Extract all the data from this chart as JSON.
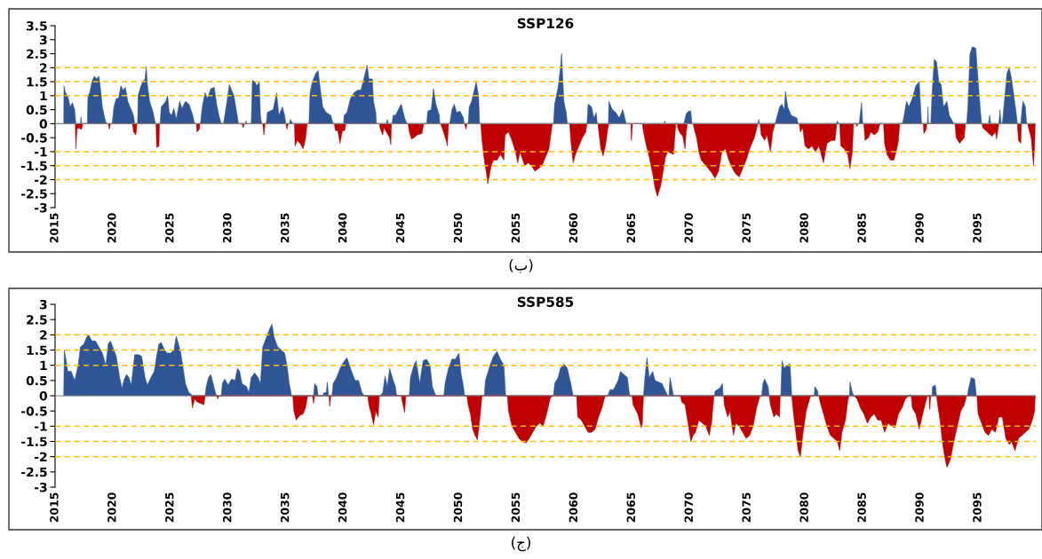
{
  "chart_data": [
    {
      "type": "area",
      "title": "SSP126",
      "xlim": [
        2015,
        2100
      ],
      "xticks": [
        2015,
        2020,
        2025,
        2030,
        2035,
        2040,
        2045,
        2050,
        2055,
        2060,
        2065,
        2070,
        2075,
        2080,
        2085,
        2090,
        2095
      ],
      "ylim": [
        -3,
        3.5
      ],
      "yticks": [
        -3,
        -2.5,
        -2,
        -1.5,
        -1,
        -0.5,
        0,
        0.5,
        1,
        1.5,
        2,
        2.5,
        3,
        3.5
      ],
      "grid": false,
      "legend": false,
      "ref_lines": [
        {
          "axis": "y",
          "value": 2,
          "color": "#ffc000",
          "line_style": "dashed"
        },
        {
          "axis": "y",
          "value": 1.5,
          "color": "#ffc000",
          "line_style": "dashed"
        },
        {
          "axis": "y",
          "value": 1,
          "color": "#ffc000",
          "line_style": "dashed"
        },
        {
          "axis": "y",
          "value": -1,
          "color": "#ffc000",
          "line_style": "dashed"
        },
        {
          "axis": "y",
          "value": -1.5,
          "color": "#ffc000",
          "line_style": "dashed"
        },
        {
          "axis": "y",
          "value": -2,
          "color": "#ffc000",
          "line_style": "dashed"
        }
      ],
      "annotations": [
        "(ب)"
      ],
      "series": [
        {
          "color": "#2f5597",
          "x": [
            2015.75,
            2015.77,
            2015.9,
            2016.1,
            2016.3,
            2016.5,
            2016.7,
            2016.8,
            2017.2,
            2017.25,
            2017.3,
            2017.8,
            2017.85,
            2018.0,
            2018.2,
            2018.4,
            2018.6,
            2018.8,
            2018.95,
            2019.1,
            2019.3,
            2019.45,
            2019.95,
            2020.1,
            2020.3,
            2020.5,
            2020.7,
            2020.9,
            2021.1,
            2021.3,
            2021.6,
            2021.8,
            2021.9,
            2022.15,
            2022.2,
            2022.4,
            2022.6,
            2022.8,
            2022.9,
            2023.0,
            2023.2,
            2023.5,
            2023.7,
            2024.1,
            2024.2,
            2024.4,
            2024.6,
            2024.75,
            2024.9,
            2025.1,
            2025.3,
            2025.5,
            2025.8,
            2026.0,
            2026.3,
            2026.6,
            2026.9,
            2027.1,
            2027.6,
            2027.7,
            2027.8,
            2028.0,
            2028.2,
            2028.5,
            2028.8,
            2029.0,
            2029.2,
            2029.4,
            2029.6,
            2029.9,
            2030.1,
            2030.3,
            2030.5,
            2030.7,
            2030.9,
            2031.5,
            2031.55,
            2031.6,
            2032.0,
            2032.1,
            2032.3,
            2032.5,
            2032.7,
            2032.8,
            2032.9,
            2033.3,
            2033.4,
            2033.6,
            2033.9,
            2034.2,
            2034.4,
            2034.7,
            2034.9,
            2035.0,
            2035.3,
            2035.4,
            2035.6,
            2037.0,
            2037.1,
            2037.3,
            2037.6,
            2037.8,
            2038.0,
            2038.2,
            2038.5,
            2038.9,
            2039.1,
            2040.0,
            2040.05,
            2040.3,
            2040.6,
            2040.9,
            2041.2,
            2041.5,
            2041.7,
            2042.05,
            2042.2,
            2042.5,
            2042.6,
            2042.8,
            2042.85,
            2043.7,
            2043.8,
            2043.9,
            2044.2,
            2044.3,
            2044.5,
            2045.0,
            2045.3,
            2045.5,
            2047.2,
            2047.3,
            2047.6,
            2047.8,
            2048.0,
            2048.3,
            2048.35,
            2049.2,
            2049.4,
            2049.6,
            2049.8,
            2050.1,
            2050.4,
            2050.45,
            2050.8,
            2050.9,
            2051.1,
            2051.5,
            2051.7,
            2051.8,
            2058.2,
            2058.3,
            2058.6,
            2058.8,
            2058.9,
            2059.1,
            2059.3,
            2059.4,
            2061.1,
            2061.2,
            2061.5,
            2061.7,
            2061.9,
            2062.0,
            2062.95,
            2063.0,
            2063.3,
            2063.6,
            2063.9,
            2064.2,
            2064.5,
            2067.8,
            2067.85,
            2067.9,
            2069.5,
            2069.7,
            2069.9,
            2070.1,
            2070.2,
            2075.9,
            2076.0,
            2076.05,
            2077.4,
            2077.5,
            2077.8,
            2078.0,
            2078.2,
            2078.3,
            2078.5,
            2078.8,
            2079.3,
            2079.4,
            2082.7,
            2082.8,
            2082.9,
            2084.7,
            2084.8,
            2084.9,
            2085.0,
            2088.4,
            2088.5,
            2088.8,
            2089.0,
            2089.3,
            2089.5,
            2089.6,
            2089.9,
            2090.1,
            2090.6,
            2090.65,
            2090.7,
            2090.9,
            2091.0,
            2091.2,
            2091.4,
            2091.6,
            2091.8,
            2092.0,
            2092.3,
            2092.5,
            2092.9,
            2094.0,
            2094.1,
            2094.3,
            2094.5,
            2094.8,
            2095.1,
            2095.3,
            2095.9,
            2096.0,
            2096.1,
            2096.8,
            2096.9,
            2097.0,
            2097.1,
            2097.3,
            2097.5,
            2097.7,
            2097.9,
            2098.1,
            2098.3,
            2098.4,
            2098.7,
            2098.8,
            2098.9,
            2099.1,
            2099.2
          ],
          "values": [
            0,
            1.35,
            1.1,
            1.0,
            0.6,
            0.75,
            0.5,
            0,
            0,
            0.25,
            0,
            0,
            1.0,
            1.1,
            1.5,
            1.7,
            1.6,
            1.7,
            1.2,
            0.6,
            0.2,
            0,
            0,
            0.6,
            0.9,
            0.9,
            1.35,
            1.2,
            1.3,
            0.8,
            0.5,
            0.3,
            0,
            0,
            1.0,
            1.3,
            1.5,
            1.6,
            2.05,
            1.4,
            0.8,
            0.4,
            0,
            0,
            0.6,
            0.7,
            0.8,
            1.0,
            0.4,
            0.3,
            0.55,
            0.15,
            0.8,
            0.55,
            0.8,
            0.7,
            0.35,
            0,
            0,
            0.4,
            0.7,
            1.1,
            0.9,
            1.25,
            1.3,
            0.7,
            0.3,
            0,
            0,
            0.8,
            1.4,
            1.2,
            1.0,
            0.5,
            0,
            0,
            0.1,
            0,
            0,
            1.55,
            1.5,
            1.35,
            1.5,
            0.3,
            0,
            0,
            0.4,
            0.45,
            0.5,
            1.1,
            0.3,
            0.6,
            0.3,
            0,
            0,
            0.15,
            0,
            0,
            1.1,
            1.5,
            1.8,
            1.9,
            1.2,
            0.6,
            0.4,
            0.3,
            0,
            0,
            0.3,
            0.4,
            0.9,
            1.1,
            1.2,
            1.2,
            1.5,
            2.1,
            1.6,
            1.6,
            0.8,
            0.4,
            0,
            0,
            0.15,
            0,
            0,
            0.3,
            0.3,
            0.7,
            0.2,
            0,
            0,
            0.45,
            0.5,
            1.25,
            0.7,
            0.3,
            0,
            0,
            0.5,
            0.7,
            0.4,
            0.45,
            0.2,
            0,
            0,
            0.6,
            0.8,
            1.5,
            1.0,
            0,
            0,
            0.7,
            1.3,
            2.0,
            2.5,
            0.8,
            0.4,
            0,
            0,
            0.7,
            0.6,
            0.2,
            0.4,
            0,
            0,
            0.8,
            0.5,
            0.4,
            0.2,
            0.5,
            0,
            0,
            0.1,
            0,
            0,
            0.35,
            0.45,
            0.45,
            0,
            0,
            0.15,
            0,
            0,
            0.15,
            0.6,
            0.7,
            0.5,
            1.15,
            0.6,
            0.3,
            0.2,
            0,
            0,
            0.1,
            0,
            0,
            0.4,
            0.75,
            0,
            0,
            0.1,
            0.8,
            0.6,
            0.9,
            1.2,
            1.35,
            1.5,
            0,
            0,
            0.6,
            0,
            0,
            1.0,
            2.3,
            2.2,
            1.5,
            1.4,
            0.6,
            0.8,
            0.3,
            0,
            0,
            0.5,
            2.5,
            2.75,
            2.7,
            1.0,
            0,
            0,
            0.3,
            0,
            0,
            0.5,
            0,
            0,
            0.9,
            1.8,
            2.0,
            1.6,
            1.0,
            0.4,
            0,
            0,
            0.5,
            0.8,
            0.6,
            0
          ]
        },
        {
          "color": "#c00000",
          "x": [
            2016.75,
            2016.8,
            2016.9,
            2017.0,
            2017.3,
            2017.4,
            2019.6,
            2019.7,
            2019.8,
            2021.7,
            2021.8,
            2022.0,
            2022.1,
            2023.75,
            2023.8,
            2024.0,
            2024.05,
            2027.25,
            2027.3,
            2027.5,
            2027.55,
            2031.2,
            2031.3,
            2031.4,
            2033.0,
            2033.1,
            2033.2,
            2035.0,
            2035.1,
            2035.2,
            2035.75,
            2035.8,
            2036.0,
            2036.3,
            2036.5,
            2036.7,
            2036.85,
            2039.2,
            2039.3,
            2039.5,
            2039.7,
            2039.9,
            2040.1,
            2040.2,
            2043.1,
            2043.2,
            2043.4,
            2043.5,
            2044.0,
            2044.1,
            2044.15,
            2045.6,
            2045.7,
            2045.9,
            2046.1,
            2046.4,
            2046.8,
            2046.95,
            2048.4,
            2048.5,
            2048.9,
            2049.0,
            2049.1,
            2050.5,
            2050.6,
            2050.7,
            2051.9,
            2052.0,
            2052.2,
            2052.4,
            2052.5,
            2052.8,
            2053.0,
            2053.3,
            2053.6,
            2053.9,
            2054.0,
            2054.3,
            2054.6,
            2054.9,
            2055.1,
            2055.3,
            2055.7,
            2056.0,
            2056.3,
            2056.6,
            2056.9,
            2057.2,
            2057.5,
            2057.8,
            2058.1,
            2059.6,
            2059.7,
            2059.9,
            2060.1,
            2060.4,
            2060.7,
            2061.0,
            2061.1,
            2062.05,
            2062.1,
            2062.3,
            2062.5,
            2062.7,
            2062.9,
            2063.0,
            2064.9,
            2064.95,
            2065.05,
            2065.9,
            2066.0,
            2066.2,
            2066.5,
            2066.8,
            2067.0,
            2067.2,
            2067.5,
            2067.7,
            2067.9,
            2068.1,
            2068.6,
            2068.8,
            2068.9,
            2069.0,
            2069.2,
            2069.4,
            2069.6,
            2069.7,
            2069.8,
            2070.3,
            2070.4,
            2070.6,
            2070.8,
            2071.0,
            2071.3,
            2071.6,
            2071.9,
            2072.2,
            2072.5,
            2072.8,
            2073.1,
            2073.4,
            2073.7,
            2074.0,
            2074.3,
            2074.6,
            2074.9,
            2075.2,
            2075.6,
            2075.8,
            2075.9,
            2076.1,
            2076.2,
            2076.5,
            2076.7,
            2077.0,
            2077.2,
            2077.4,
            2079.5,
            2079.6,
            2079.8,
            2080.0,
            2080.3,
            2080.6,
            2080.9,
            2081.2,
            2081.6,
            2081.9,
            2082.3,
            2082.6,
            2082.75,
            2083.0,
            2083.1,
            2083.4,
            2083.7,
            2083.9,
            2084.1,
            2084.2,
            2084.4,
            2084.5,
            2084.6,
            2085.1,
            2085.2,
            2085.5,
            2085.7,
            2086.0,
            2086.3,
            2086.5,
            2086.8,
            2086.9,
            2087.1,
            2087.4,
            2087.7,
            2087.9,
            2088.1,
            2088.2,
            2090.25,
            2090.3,
            2090.5,
            2090.55,
            2093.0,
            2093.1,
            2093.4,
            2093.8,
            2093.9,
            2095.35,
            2095.4,
            2095.8,
            2096.2,
            2096.5,
            2096.6,
            2096.8,
            2098.4,
            2098.5,
            2098.7,
            2098.75,
            2099.3,
            2099.4,
            2099.6,
            2099.8,
            2099.9,
            2099.95
          ],
          "values": [
            0,
            -0.9,
            -0.2,
            -0.15,
            -0.2,
            0,
            0,
            -0.2,
            0,
            0,
            -0.3,
            -0.4,
            0,
            0,
            -0.85,
            -0.8,
            0,
            0,
            -0.3,
            -0.2,
            0,
            0,
            -0.15,
            0,
            0,
            -0.4,
            0,
            0,
            -0.2,
            0,
            0,
            -0.8,
            -0.6,
            -0.75,
            -0.9,
            -0.55,
            0,
            0,
            -0.25,
            -0.25,
            -0.7,
            -0.25,
            -0.25,
            0,
            0,
            -0.2,
            -0.4,
            -0.15,
            -0.5,
            -0.75,
            0,
            0,
            -0.3,
            -0.55,
            -0.5,
            -0.4,
            -0.35,
            0,
            0,
            -0.1,
            -0.6,
            -0.8,
            0,
            0,
            -0.2,
            0,
            0,
            -0.6,
            -1.3,
            -1.8,
            -2.15,
            -1.5,
            -1.3,
            -1.3,
            -1.1,
            -1.3,
            -0.4,
            -0.3,
            -0.6,
            -1.0,
            -1.4,
            -1.0,
            -1.5,
            -1.4,
            -1.5,
            -1.7,
            -1.6,
            -1.5,
            -1.2,
            -0.9,
            0,
            0,
            -0.6,
            -1.4,
            -1.1,
            -0.8,
            -0.5,
            -0.3,
            0,
            0,
            -0.2,
            -0.9,
            -1.15,
            -0.8,
            -0.2,
            0,
            0,
            -0.6,
            0,
            0,
            -0.3,
            -0.7,
            -1.2,
            -1.8,
            -2.3,
            -2.6,
            -2.2,
            -1.7,
            -1.2,
            -1.0,
            -1.1,
            0,
            0,
            -0.2,
            -0.35,
            -0.45,
            -0.9,
            -0.3,
            0,
            0,
            -0.2,
            -0.5,
            -1.0,
            -1.3,
            -1.45,
            -1.6,
            -1.75,
            -1.95,
            -1.7,
            -1.0,
            -0.9,
            -1.3,
            -1.6,
            -1.8,
            -1.9,
            -1.6,
            -1.3,
            -0.9,
            -0.5,
            -0.2,
            0,
            0,
            -0.4,
            -0.6,
            -0.4,
            -1.0,
            -0.3,
            0,
            0,
            -0.3,
            -0.15,
            -0.8,
            -0.9,
            -0.8,
            -1.0,
            -0.8,
            -1.4,
            -0.7,
            -0.6,
            -0.6,
            0,
            0,
            -0.8,
            -0.9,
            -1.1,
            -1.6,
            -1.0,
            0,
            0,
            -0.1,
            0,
            0,
            -0.6,
            -0.5,
            -0.3,
            -0.4,
            -0.3,
            0,
            0,
            -0.7,
            -1.1,
            -1.3,
            -1.3,
            -1.0,
            -0.6,
            0,
            0,
            -0.35,
            -0.2,
            0,
            0,
            -0.5,
            -0.7,
            -0.5,
            0,
            0,
            -0.15,
            -0.3,
            -0.45,
            -0.3,
            -0.55,
            0,
            0,
            -0.6,
            -0.7,
            0,
            0,
            -0.2,
            -0.5,
            -1.5,
            -0.8,
            0
          ]
        }
      ]
    },
    {
      "type": "area",
      "title": "SSP585",
      "xlim": [
        2015,
        2100
      ],
      "xticks": [
        2015,
        2020,
        2025,
        2030,
        2035,
        2040,
        2045,
        2050,
        2055,
        2060,
        2065,
        2070,
        2075,
        2080,
        2085,
        2090,
        2095
      ],
      "ylim": [
        -3,
        3
      ],
      "yticks": [
        -3,
        -2.5,
        -2,
        -1.5,
        -1,
        -0.5,
        0,
        0.5,
        1,
        1.5,
        2,
        2.5,
        3
      ],
      "grid": false,
      "legend": false,
      "ref_lines": [
        {
          "axis": "y",
          "value": 2,
          "color": "#ffc000",
          "line_style": "dashed"
        },
        {
          "axis": "y",
          "value": 1.5,
          "color": "#ffc000",
          "line_style": "dashed"
        },
        {
          "axis": "y",
          "value": 1,
          "color": "#ffc000",
          "line_style": "dashed"
        },
        {
          "axis": "y",
          "value": -1,
          "color": "#ffc000",
          "line_style": "dashed"
        },
        {
          "axis": "y",
          "value": -1.5,
          "color": "#ffc000",
          "line_style": "dashed"
        },
        {
          "axis": "y",
          "value": -2,
          "color": "#ffc000",
          "line_style": "dashed"
        }
      ],
      "annotations": [
        "(ج)"
      ],
      "series": [
        {
          "color": "#2f5597",
          "x": [
            2015.75,
            2015.8,
            2015.9,
            2016.1,
            2016.4,
            2016.7,
            2017.0,
            2017.2,
            2017.5,
            2017.7,
            2017.9,
            2018.2,
            2018.5,
            2018.8,
            2019.1,
            2019.4,
            2019.6,
            2019.8,
            2020.0,
            2020.3,
            2020.6,
            2020.8,
            2021.0,
            2021.2,
            2021.4,
            2021.6,
            2021.9,
            2022.2,
            2022.5,
            2022.8,
            2023.0,
            2023.3,
            2023.6,
            2023.8,
            2024.0,
            2024.2,
            2024.5,
            2024.7,
            2025.0,
            2025.3,
            2025.5,
            2025.7,
            2025.9,
            2026.1,
            2026.3,
            2026.6,
            2026.8,
            2026.9,
            2028.0,
            2028.1,
            2028.3,
            2028.5,
            2028.7,
            2028.9,
            2029.0,
            2029.4,
            2029.5,
            2029.7,
            2030.0,
            2030.3,
            2030.6,
            2030.8,
            2031.0,
            2031.2,
            2031.6,
            2031.8,
            2032.0,
            2032.3,
            2032.6,
            2032.8,
            2033.0,
            2033.3,
            2033.6,
            2033.8,
            2034.0,
            2034.3,
            2034.6,
            2034.9,
            2035.1,
            2035.3,
            2035.5,
            2037.4,
            2037.5,
            2037.7,
            2037.8,
            2038.2,
            2038.3,
            2038.5,
            2038.6,
            2038.7,
            2039.0,
            2039.1,
            2039.4,
            2039.7,
            2040.0,
            2040.3,
            2040.6,
            2041.0,
            2041.3,
            2041.6,
            2041.8,
            2043.2,
            2043.4,
            2043.6,
            2043.8,
            2044.0,
            2044.3,
            2044.5,
            2044.6,
            2045.7,
            2045.8,
            2046.1,
            2046.3,
            2046.6,
            2046.9,
            2047.2,
            2047.5,
            2047.7,
            2048.0,
            2048.7,
            2048.8,
            2049.1,
            2049.4,
            2049.7,
            2050.0,
            2050.2,
            2050.4,
            2050.5,
            2052.2,
            2052.3,
            2052.7,
            2053.0,
            2053.3,
            2053.6,
            2053.9,
            2054.05,
            2058.2,
            2058.3,
            2058.6,
            2058.8,
            2059.1,
            2059.4,
            2059.7,
            2059.9,
            2062.9,
            2063.1,
            2063.4,
            2063.8,
            2064.0,
            2064.3,
            2064.6,
            2064.8,
            2066.0,
            2066.1,
            2066.3,
            2066.5,
            2066.8,
            2067.0,
            2067.3,
            2067.6,
            2067.9,
            2068.1,
            2068.2,
            2068.3,
            2068.5,
            2068.6,
            2072.15,
            2072.2,
            2072.6,
            2072.85,
            2072.9,
            2076.25,
            2076.35,
            2076.5,
            2076.8,
            2076.9,
            2077.9,
            2078.0,
            2078.2,
            2078.4,
            2078.7,
            2078.85,
            2080.8,
            2080.85,
            2081.1,
            2081.15,
            2083.85,
            2083.9,
            2084.1,
            2084.25,
            2089.05,
            2089.1,
            2089.15,
            2091.0,
            2091.05,
            2091.3,
            2091.4,
            2094.1,
            2094.15,
            2094.4,
            2094.7,
            2094.85
          ],
          "values": [
            0,
            1.5,
            1.3,
            0.8,
            0.8,
            0.5,
            1.0,
            1.6,
            1.7,
            1.9,
            2.0,
            1.8,
            1.8,
            1.6,
            1.4,
            1.0,
            1.7,
            1.8,
            1.6,
            1.3,
            0.6,
            0.25,
            0.55,
            0.7,
            0.6,
            0.35,
            1.35,
            1.35,
            1.3,
            0.6,
            0.35,
            0.6,
            0.8,
            1.3,
            1.7,
            1.75,
            1.5,
            1.4,
            1.4,
            1.5,
            1.95,
            1.7,
            1.4,
            0.9,
            0.4,
            0.1,
            0.05,
            0,
            0,
            0.3,
            0.6,
            0.7,
            0.4,
            0.1,
            0,
            0,
            0.4,
            0.55,
            0.35,
            0.55,
            0.5,
            0.9,
            0.8,
            0.4,
            0.3,
            0.1,
            0.6,
            0.75,
            0.6,
            0.4,
            1.6,
            1.9,
            2.2,
            2.35,
            1.9,
            1.6,
            1.5,
            1.4,
            1.0,
            0.4,
            0,
            0,
            0.4,
            0.3,
            0,
            0,
            0.1,
            0.1,
            0.45,
            0,
            0,
            0.4,
            0.6,
            0.9,
            1.1,
            1.25,
            0.9,
            0.5,
            0.5,
            0.1,
            0,
            0,
            0.1,
            0.65,
            0.3,
            0.9,
            0.5,
            0.3,
            0,
            0,
            0.6,
            1.0,
            1.15,
            0.4,
            1.15,
            1.2,
            1.0,
            0.3,
            0,
            0,
            0.4,
            0.9,
            1.2,
            1.2,
            1.4,
            0.7,
            0.3,
            0,
            0,
            0.5,
            1.0,
            1.3,
            1.45,
            1.2,
            1.0,
            0,
            0,
            0.4,
            0.6,
            0.9,
            1.05,
            0.9,
            0.4,
            0,
            0,
            0.2,
            0.2,
            0.5,
            0.8,
            0.7,
            0.6,
            0,
            0,
            0.5,
            1.25,
            0.6,
            0.8,
            0.5,
            0.45,
            0.4,
            0.15,
            0,
            0,
            0.6,
            0.2,
            0,
            0,
            0.15,
            0.25,
            0.4,
            0,
            0,
            0.4,
            0.55,
            0.3,
            0,
            0,
            1.15,
            0.9,
            1.0,
            1.05,
            0,
            0,
            0.3,
            0.15,
            0,
            0,
            0.45,
            0.1,
            0,
            0,
            0.05,
            0,
            0,
            0.3,
            0.35,
            0,
            0,
            0.2,
            0.6,
            0.55,
            0
          ]
        },
        {
          "color": "#c00000",
          "x": [
            2026.8,
            2026.9,
            2027.1,
            2027.3,
            2027.6,
            2027.9,
            2028.0,
            2029.0,
            2029.1,
            2029.2,
            2035.6,
            2035.7,
            2035.9,
            2036.2,
            2036.5,
            2036.7,
            2036.9,
            2037.3,
            2037.4,
            2037.5,
            2038.75,
            2038.8,
            2038.9,
            2042.1,
            2042.2,
            2042.4,
            2042.6,
            2042.8,
            2043.0,
            2043.1,
            2045.0,
            2045.1,
            2045.3,
            2045.4,
            2050.7,
            2050.8,
            2051.0,
            2051.2,
            2051.4,
            2051.6,
            2051.8,
            2052.0,
            2054.2,
            2054.3,
            2054.6,
            2054.9,
            2055.2,
            2055.5,
            2055.8,
            2056.1,
            2056.4,
            2056.7,
            2057.0,
            2057.3,
            2057.6,
            2057.9,
            2058.1,
            2060.2,
            2060.3,
            2060.6,
            2060.9,
            2061.2,
            2061.5,
            2061.8,
            2062.1,
            2062.4,
            2062.6,
            2062.7,
            2065.0,
            2065.1,
            2065.5,
            2065.8,
            2065.9,
            2066.0,
            2069.2,
            2069.3,
            2069.6,
            2069.9,
            2070.1,
            2070.3,
            2070.5,
            2070.8,
            2071.1,
            2071.4,
            2071.7,
            2071.9,
            2072.1,
            2072.95,
            2073.0,
            2073.3,
            2073.5,
            2073.8,
            2074.0,
            2074.3,
            2074.6,
            2074.9,
            2075.2,
            2075.5,
            2075.8,
            2076.1,
            2076.9,
            2077.0,
            2077.3,
            2077.5,
            2077.8,
            2077.85,
            2078.85,
            2079.0,
            2079.2,
            2079.4,
            2079.6,
            2079.8,
            2080.1,
            2080.4,
            2080.5,
            2081.2,
            2081.3,
            2081.6,
            2081.9,
            2082.2,
            2082.5,
            2082.8,
            2083.0,
            2083.2,
            2083.5,
            2083.7,
            2083.8,
            2084.25,
            2084.5,
            2084.8,
            2085.1,
            2085.4,
            2085.7,
            2086.0,
            2086.3,
            2086.6,
            2086.9,
            2087.2,
            2087.5,
            2087.8,
            2088.1,
            2088.4,
            2088.7,
            2089.0,
            2089.2,
            2089.3,
            2089.6,
            2089.9,
            2090.2,
            2090.4,
            2090.6,
            2090.75,
            2090.8,
            2090.9,
            2091.4,
            2091.5,
            2091.7,
            2091.9,
            2092.1,
            2092.3,
            2092.6,
            2092.9,
            2093.2,
            2093.5,
            2093.8,
            2094.0,
            2094.9,
            2095.0,
            2095.3,
            2095.6,
            2095.9,
            2096.2,
            2096.5,
            2096.8,
            2097.1,
            2097.4,
            2097.7,
            2097.9,
            2098.2,
            2098.5,
            2098.8,
            2099.1,
            2099.4,
            2099.7,
            2099.9,
            2099.95
          ],
          "values": [
            0,
            -0.4,
            -0.1,
            -0.2,
            -0.25,
            -0.3,
            0,
            0,
            -0.1,
            0,
            0,
            -0.5,
            -0.8,
            -0.65,
            -0.6,
            -0.4,
            0,
            0,
            -0.25,
            0,
            0,
            -0.35,
            0,
            0,
            -0.3,
            -0.6,
            -0.95,
            -0.5,
            -0.7,
            0,
            0,
            -0.2,
            -0.55,
            0,
            0,
            -0.3,
            -0.6,
            -1.1,
            -1.3,
            -1.45,
            -0.8,
            0,
            0,
            -0.5,
            -1.0,
            -1.2,
            -1.4,
            -1.5,
            -1.55,
            -1.4,
            -1.2,
            -1.0,
            -0.9,
            -1.0,
            -0.6,
            -0.1,
            0,
            0,
            -0.7,
            -0.8,
            -1.0,
            -1.2,
            -1.2,
            -1.1,
            -0.7,
            -0.4,
            -0.1,
            0,
            0,
            -0.3,
            -0.6,
            -1.05,
            -0.9,
            0,
            0,
            -0.2,
            -0.3,
            -1.0,
            -1.5,
            -1.3,
            -1.2,
            -0.8,
            -0.9,
            -1.0,
            -1.3,
            -0.9,
            0,
            0,
            -0.3,
            -0.7,
            -0.5,
            -1.3,
            -0.9,
            -1.0,
            -1.2,
            -1.4,
            -1.3,
            -1.0,
            -0.4,
            0,
            0,
            -0.3,
            -0.7,
            -0.6,
            -0.7,
            0,
            0,
            -0.6,
            -1.2,
            -1.8,
            -2.0,
            -1.3,
            -0.5,
            -0.1,
            0,
            0,
            -0.2,
            -0.6,
            -1.0,
            -1.3,
            -1.4,
            -1.5,
            -1.8,
            -1.2,
            -0.8,
            -0.2,
            0,
            0,
            -0.1,
            -0.4,
            -0.6,
            -0.9,
            -0.7,
            -0.6,
            -0.8,
            -0.8,
            -1.2,
            -0.9,
            -1.0,
            -1.05,
            -0.6,
            -0.4,
            -0.1,
            0,
            0,
            -0.4,
            -0.6,
            -1.1,
            -0.6,
            -0.3,
            0,
            0,
            -0.45,
            0,
            0,
            -0.3,
            -0.8,
            -1.5,
            -2.0,
            -2.35,
            -2.1,
            -1.5,
            -1.0,
            -0.5,
            -0.3,
            0,
            0,
            -0.6,
            -0.9,
            -1.2,
            -1.3,
            -1.1,
            -1.2,
            -0.7,
            -0.7,
            -1.4,
            -1.6,
            -1.5,
            -1.8,
            -1.4,
            -1.3,
            -1.2,
            -1.1,
            -0.8,
            -0.5,
            0
          ]
        }
      ]
    }
  ]
}
